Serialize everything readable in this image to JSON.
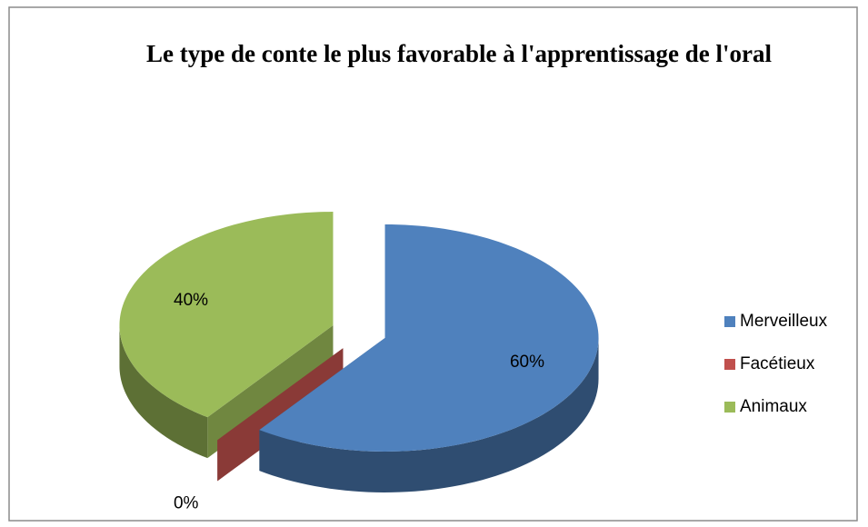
{
  "chart_data": {
    "type": "pie",
    "title": "Le type de conte le plus favorable à l'apprentissage de l'oral",
    "categories": [
      "Merveilleux",
      "Facétieux",
      "Animaux"
    ],
    "values": [
      60,
      0,
      40
    ],
    "value_labels": [
      "60%",
      "0%",
      "40%"
    ],
    "colors": [
      "#4f81bd",
      "#c0504d",
      "#9bbb59"
    ],
    "legend": "right"
  }
}
